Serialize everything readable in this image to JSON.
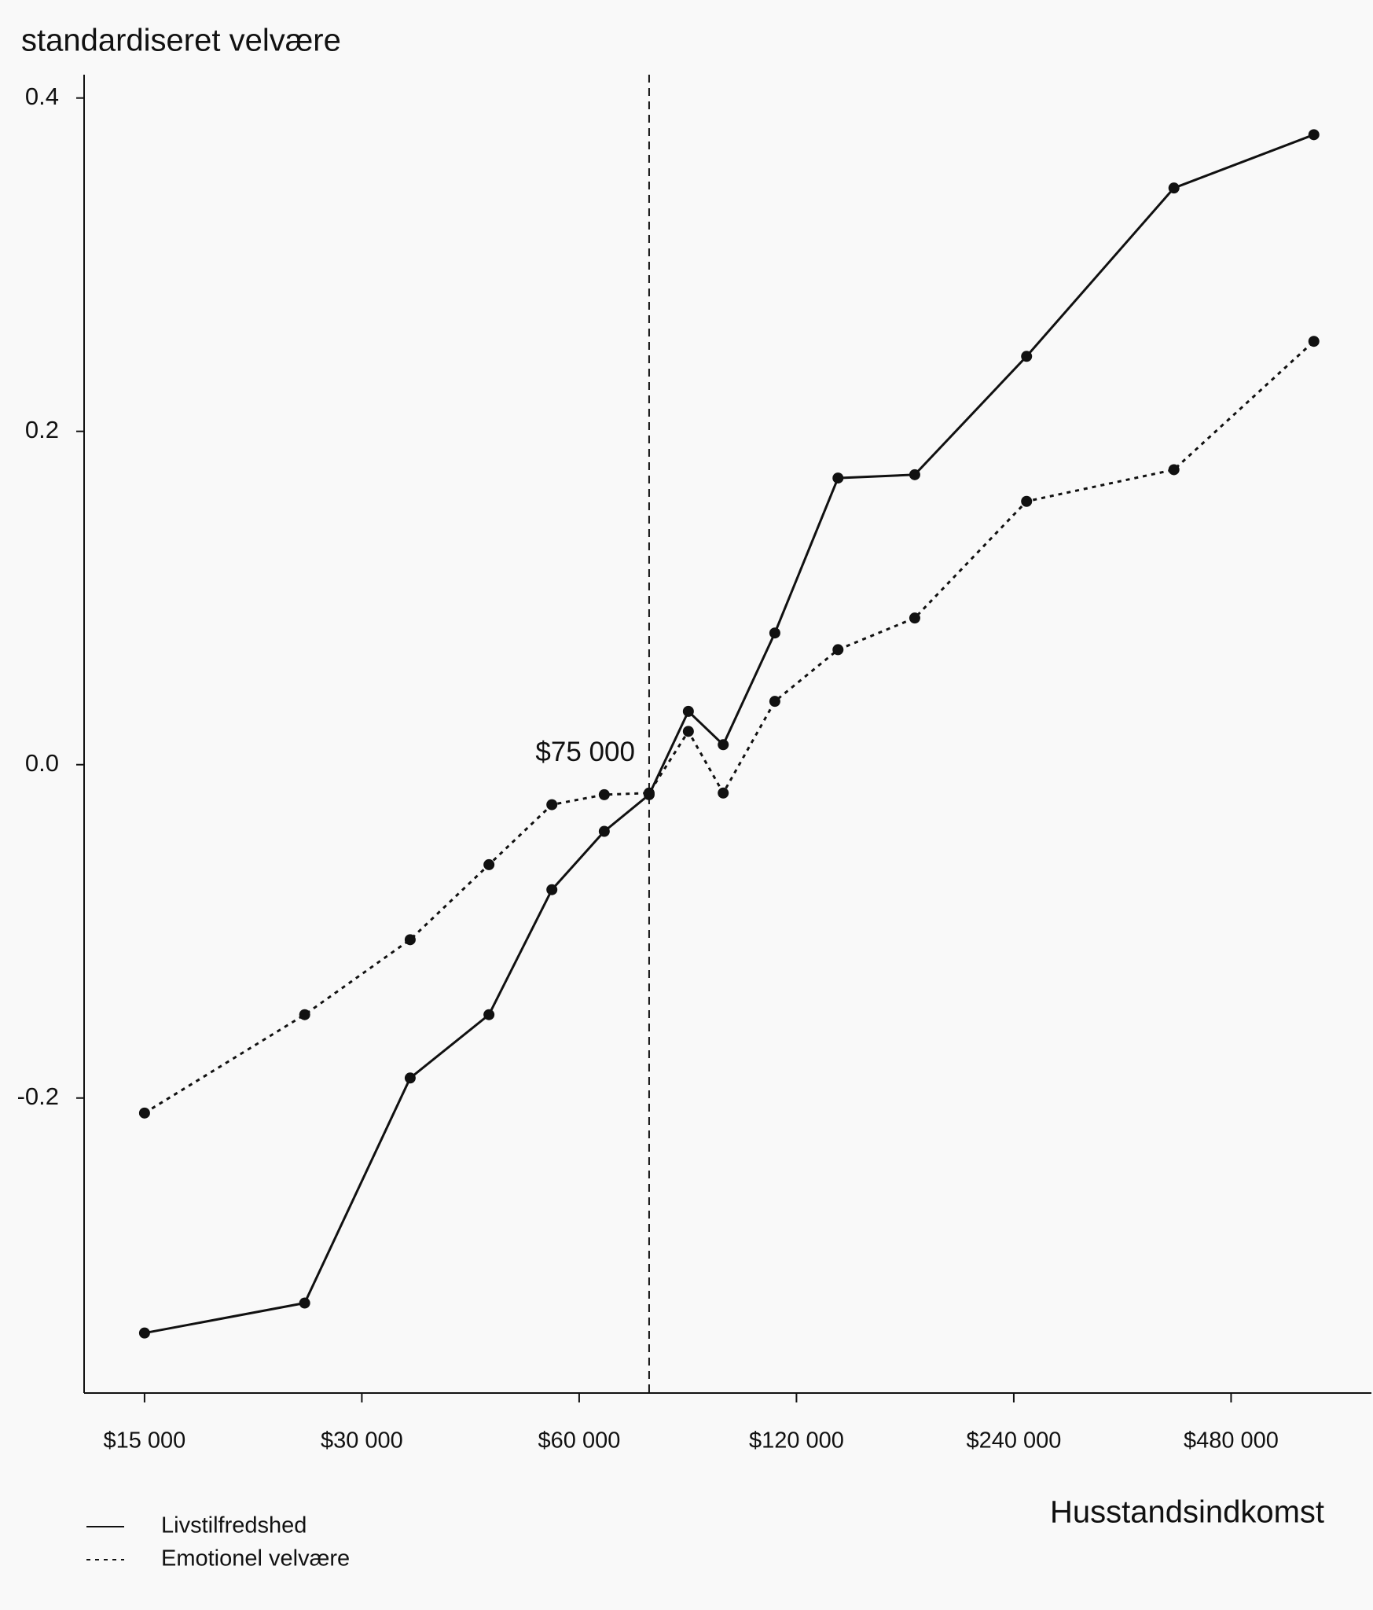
{
  "chart_data": {
    "type": "line",
    "y_label": "standardiseret velvære",
    "x_label": "Husstandsindkomst",
    "log_x": true,
    "xlim": [
      12370,
      751000
    ],
    "xticks": [
      {
        "value": 15000,
        "label": "$15 000"
      },
      {
        "value": 30000,
        "label": "$30 000"
      },
      {
        "value": 60000,
        "label": "$60 000"
      },
      {
        "value": 120000,
        "label": "$120 000"
      },
      {
        "value": 240000,
        "label": "$240 000"
      },
      {
        "value": 480000,
        "label": "$480 000"
      }
    ],
    "ylim": [
      -0.377,
      0.414
    ],
    "yticks": [
      0.4,
      0.2,
      {
        "value": 0,
        "label": "0.0"
      },
      -0.2
    ],
    "vline": {
      "x": 75000,
      "label": "$75 000"
    },
    "series": [
      {
        "name": "Livstilfredshed",
        "color": "#111111",
        "dash": "solid",
        "x": [
          15000,
          25000,
          35000,
          45000,
          55000,
          65000,
          75000,
          85000,
          95000,
          112000,
          137000,
          175000,
          250000,
          400000,
          625000
        ],
        "values": [
          -0.341,
          -0.323,
          -0.188,
          -0.15,
          -0.075,
          -0.04,
          -0.018,
          0.032,
          0.012,
          0.079,
          0.172,
          0.174,
          0.245,
          0.346,
          0.378
        ]
      },
      {
        "name": "Emotionel velvære",
        "color": "#111111",
        "dash": "dotted",
        "x": [
          15000,
          25000,
          35000,
          45000,
          55000,
          65000,
          75000,
          85000,
          95000,
          112000,
          137000,
          175000,
          250000,
          400000,
          625000
        ],
        "values": [
          -0.209,
          -0.15,
          -0.105,
          -0.06,
          -0.024,
          -0.018,
          -0.017,
          0.02,
          -0.017,
          0.038,
          0.069,
          0.088,
          0.158,
          0.177,
          0.254
        ]
      }
    ]
  }
}
